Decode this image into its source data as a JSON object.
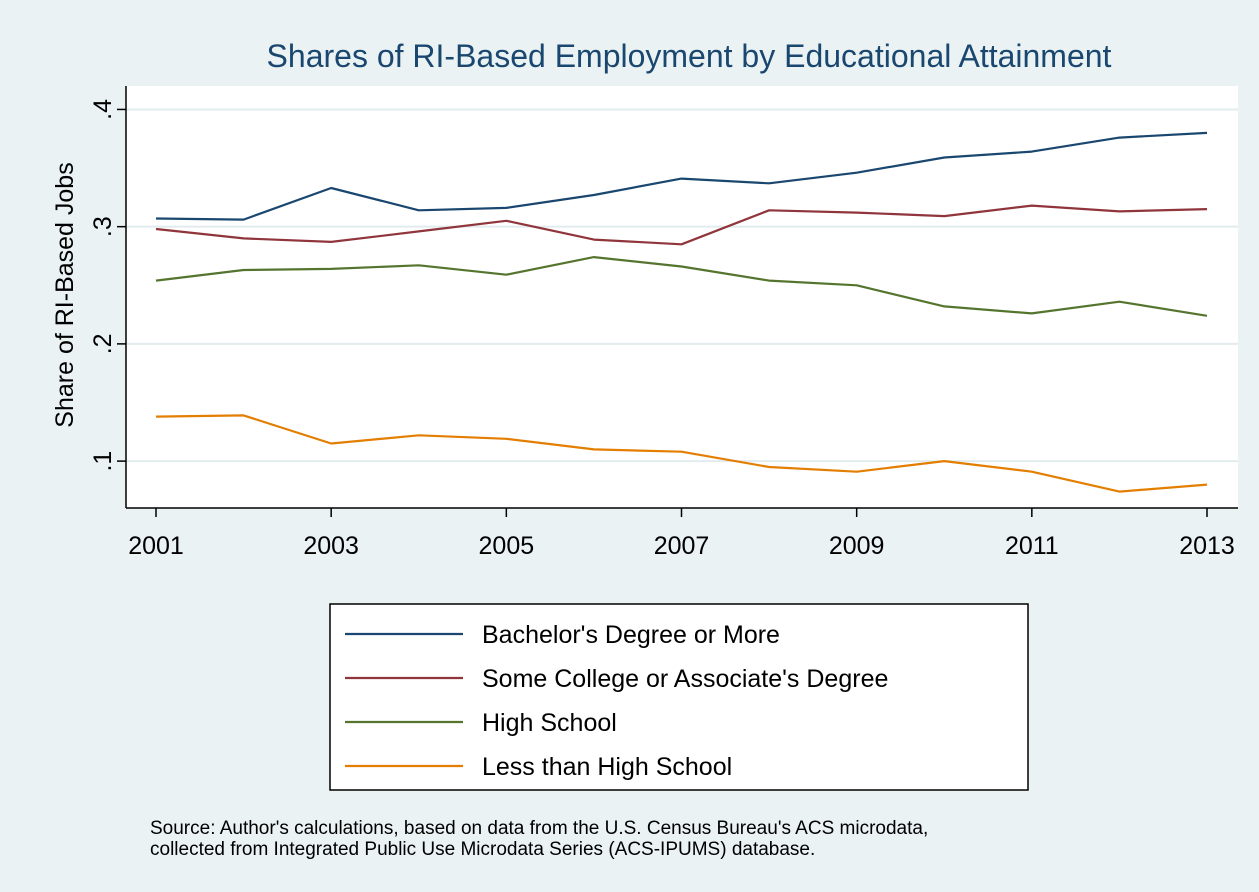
{
  "chart_data": {
    "type": "line",
    "title": "Shares of RI-Based Employment by Educational Attainment",
    "xlabel": "",
    "ylabel": "Share of RI-Based Jobs",
    "x": [
      2001,
      2002,
      2003,
      2004,
      2005,
      2006,
      2007,
      2008,
      2009,
      2010,
      2011,
      2012,
      2013
    ],
    "xlim": [
      2001,
      2013
    ],
    "ylim": [
      0.06,
      0.42
    ],
    "x_ticks": [
      {
        "value": 2001,
        "label": "2001"
      },
      {
        "value": 2003,
        "label": "2003"
      },
      {
        "value": 2005,
        "label": "2005"
      },
      {
        "value": 2007,
        "label": "2007"
      },
      {
        "value": 2009,
        "label": "2009"
      },
      {
        "value": 2011,
        "label": "2011"
      },
      {
        "value": 2013,
        "label": "2013"
      }
    ],
    "y_ticks": [
      {
        "value": 0.1,
        "label": ".1"
      },
      {
        "value": 0.2,
        "label": ".2"
      },
      {
        "value": 0.3,
        "label": ".3"
      },
      {
        "value": 0.4,
        "label": ".4"
      }
    ],
    "grid": true,
    "legend_position": "bottom",
    "series": [
      {
        "name": "Bachelor's Degree or More",
        "color": "#1a476f",
        "values": [
          0.307,
          0.306,
          0.333,
          0.314,
          0.316,
          0.327,
          0.341,
          0.337,
          0.346,
          0.359,
          0.364,
          0.376,
          0.38
        ]
      },
      {
        "name": "Some College or Associate's Degree",
        "color": "#90353b",
        "values": [
          0.298,
          0.29,
          0.287,
          0.296,
          0.305,
          0.289,
          0.285,
          0.314,
          0.312,
          0.309,
          0.318,
          0.313,
          0.315
        ]
      },
      {
        "name": "High School",
        "color": "#55752f",
        "values": [
          0.254,
          0.263,
          0.264,
          0.267,
          0.259,
          0.274,
          0.266,
          0.254,
          0.25,
          0.232,
          0.226,
          0.236,
          0.224
        ]
      },
      {
        "name": "Less than High School",
        "color": "#e37e00",
        "values": [
          0.138,
          0.139,
          0.115,
          0.122,
          0.119,
          0.11,
          0.108,
          0.095,
          0.091,
          0.1,
          0.091,
          0.074,
          0.08
        ]
      }
    ],
    "note": [
      "Source: Author's calculations, based on data from the U.S. Census Bureau's ACS microdata,",
      "collected from Integrated Public Use Microdata Series (ACS-IPUMS) database."
    ]
  }
}
